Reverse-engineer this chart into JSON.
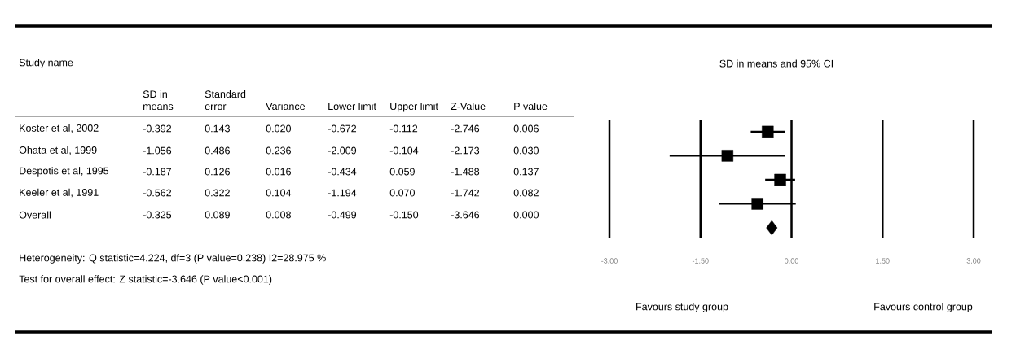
{
  "chart_data": [
    {
      "type": "other",
      "title": "Study name",
      "categories": [
        "SD in means",
        "Standard error",
        "Variance",
        "Lower limit",
        "Upper limit",
        "Z-Value",
        "P value"
      ],
      "y_categories": [
        "Koster et al, 2002",
        "Ohata et al, 1999",
        "Despotis et al, 1995",
        "Keeler et al, 1991",
        "Overall"
      ],
      "cell_labels": [
        [
          "-0.392",
          "0.143",
          "0.020",
          "-0.672",
          "-0.112",
          "-2.746",
          "0.006"
        ],
        [
          "-1.056",
          "0.486",
          "0.236",
          "-2.009",
          "-0.104",
          "-2.173",
          "0.030"
        ],
        [
          "-0.187",
          "0.126",
          "0.016",
          "-0.434",
          "0.059",
          "-1.488",
          "0.137"
        ],
        [
          "-0.562",
          "0.322",
          "0.104",
          "-1.194",
          "0.070",
          "-1.742",
          "0.082"
        ],
        [
          "-0.325",
          "0.089",
          "0.008",
          "-0.499",
          "-0.150",
          "-3.646",
          "0.000"
        ]
      ],
      "annotations": [
        "Heterogeneity: Q statistic=4.224, df=3 (P value=0.238) I2=28.975 %",
        "Test for overall effect: Z statistic=-3.646 (P value<0.001)"
      ]
    },
    {
      "type": "scatter",
      "orientation": "horizontal",
      "title": "SD in means and 95% CI",
      "categories": [
        null,
        null,
        null,
        null,
        null
      ],
      "xlim": [
        -3,
        3
      ],
      "xticks": [
        {
          "value": -3,
          "label": "-3.00"
        },
        {
          "value": -1.5,
          "label": "-1.50"
        },
        {
          "value": 0,
          "label": "0.00"
        },
        {
          "value": 1.5,
          "label": "1.50"
        },
        {
          "value": 3,
          "label": "3.00"
        }
      ],
      "grid": "x",
      "series": [
        {
          "marker": "square",
          "color": "#000000",
          "values": [
            -0.392,
            -1.056,
            -0.187,
            -0.562,
            null
          ],
          "errors": [
            [
              -0.672,
              -0.112
            ],
            [
              -2.009,
              -0.104
            ],
            [
              -0.434,
              0.059
            ],
            [
              -1.194,
              0.07
            ],
            null
          ]
        },
        {
          "marker": "diamond",
          "color": "#000000",
          "values": [
            null,
            null,
            null,
            null,
            -0.325
          ]
        }
      ],
      "annotations": [
        "Favours study group",
        "Favours control group"
      ]
    }
  ]
}
